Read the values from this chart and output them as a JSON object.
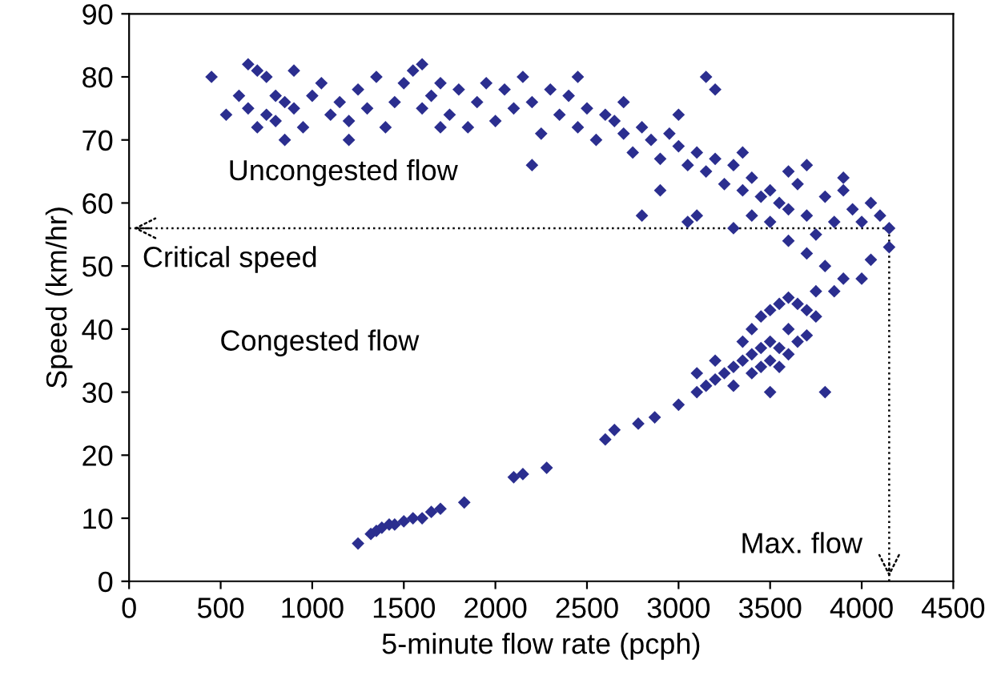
{
  "chart_data": {
    "type": "scatter",
    "xlabel": "5-minute flow rate (pcph)",
    "ylabel": "Speed (km/hr)",
    "xlim": [
      0,
      4500
    ],
    "xticks": [
      0,
      500,
      1000,
      1500,
      2000,
      2500,
      3000,
      3500,
      4000,
      4500
    ],
    "ylim": [
      0,
      90
    ],
    "yticks": [
      0,
      10,
      20,
      30,
      40,
      50,
      60,
      70,
      80,
      90
    ],
    "grid": false,
    "marker": "diamond",
    "annotations": [
      "Uncongested flow",
      "Congested flow"
    ],
    "ref_lines": [
      {
        "axis": "y",
        "value": 56,
        "label": "Critical speed",
        "line_style": "dotted",
        "color": "#000000"
      },
      {
        "axis": "x",
        "value": 4150,
        "label": "Max. flow",
        "line_style": "dotted",
        "color": "#000000"
      }
    ],
    "series": [
      {
        "color": "#2b2e8f",
        "x": [
          1250,
          1320,
          1350,
          1380,
          1420,
          1450,
          1500,
          1550,
          1600,
          1650,
          1700,
          1830,
          2100,
          2150,
          2280,
          2600,
          2650,
          2780,
          2870,
          3000,
          3100,
          3150,
          3200,
          3250,
          3300,
          3350,
          3400,
          3450,
          3500,
          3550,
          3600,
          3400,
          3450,
          3500,
          3550,
          3600,
          3350,
          3400,
          3450,
          3500,
          3550,
          3600,
          3650,
          3700,
          3750,
          3500,
          3700,
          3750,
          3800,
          3300,
          3200,
          3100,
          3650,
          450,
          530,
          600,
          650,
          700,
          750,
          650,
          700,
          750,
          800,
          800,
          850,
          900,
          900,
          950,
          1000,
          1050,
          1100,
          1150,
          1200,
          1250,
          1300,
          1350,
          1400,
          1450,
          1500,
          1550,
          1600,
          1600,
          1650,
          1700,
          1750,
          1800,
          1850,
          1900,
          1950,
          2000,
          2050,
          2100,
          2150,
          2200,
          2200,
          2250,
          2300,
          2350,
          2400,
          2450,
          2500,
          2550,
          2600,
          2650,
          2700,
          2750,
          2800,
          2850,
          2800,
          2900,
          2950,
          3000,
          3050,
          3050,
          3100,
          3100,
          3150,
          3200,
          3250,
          3300,
          3350,
          3400,
          3450,
          3500,
          3500,
          3550,
          3600,
          3650,
          3700,
          3750,
          3800,
          3850,
          3900,
          3950,
          4000,
          4050,
          4100,
          4150,
          4150,
          3600,
          3700,
          3800,
          3850,
          3900,
          4000,
          4050,
          3400,
          3300,
          3150,
          2450,
          3200,
          3000,
          2700,
          1200,
          850,
          1700,
          2900,
          3350,
          3600,
          3700,
          3900
        ],
        "values": [
          6,
          7.5,
          8,
          8.5,
          9,
          9,
          9.5,
          10,
          10,
          11,
          11.5,
          12.5,
          16.5,
          17,
          18,
          22.5,
          24,
          25,
          26,
          28,
          30,
          31,
          32,
          33,
          34,
          35,
          36,
          37,
          38,
          37,
          40,
          33,
          34,
          35,
          34,
          36,
          38,
          40,
          42,
          43,
          44,
          45,
          44,
          43,
          42,
          30,
          39,
          46,
          30,
          31,
          35,
          33,
          38,
          80,
          74,
          77,
          82,
          81,
          80,
          75,
          72,
          74,
          77,
          73,
          76,
          81,
          75,
          72,
          77,
          79,
          74,
          76,
          73,
          78,
          75,
          80,
          72,
          76,
          79,
          81,
          82,
          75,
          77,
          79,
          74,
          78,
          72,
          76,
          79,
          73,
          78,
          75,
          80,
          76,
          66,
          71,
          78,
          74,
          77,
          72,
          75,
          70,
          74,
          73,
          71,
          68,
          72,
          70,
          58,
          67,
          71,
          69,
          66,
          57,
          68,
          58,
          65,
          67,
          63,
          66,
          62,
          64,
          61,
          62,
          57,
          60,
          59,
          63,
          58,
          55,
          61,
          57,
          62,
          59,
          57,
          60,
          58,
          56,
          53,
          54,
          52,
          50,
          46,
          48,
          48,
          51,
          58,
          56,
          80,
          80,
          78,
          74,
          76,
          70,
          70,
          72,
          62,
          68,
          65,
          66,
          64
        ]
      }
    ]
  }
}
